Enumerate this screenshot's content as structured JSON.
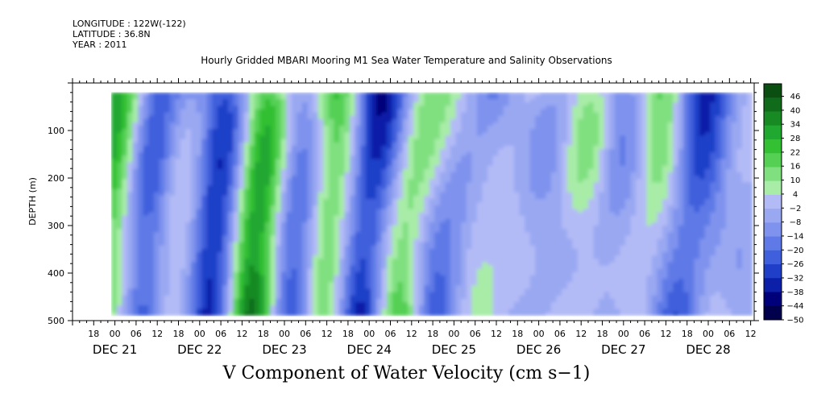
{
  "header": {
    "longitude": "LONGITUDE : 122W(-122)",
    "latitude": "LATITUDE : 36.8N",
    "year": "YEAR : 2011",
    "title": "Hourly Gridded MBARI Mooring M1 Sea Water Temperature and Salinity Observations"
  },
  "bottom_title": "V Component of Water Velocity (cm s−1)",
  "chart_data": {
    "type": "heatmap",
    "title": "Hourly Gridded MBARI Mooring M1 Sea Water Temperature and Salinity Observations",
    "xlabel": "",
    "ylabel": "DEPTH (m)",
    "variable": "V Component of Water Velocity (cm s−1)",
    "x_range_hours_from_dec21_00": [
      -12,
      181
    ],
    "data_x_range_hours_from_dec21_00": [
      -1,
      180
    ],
    "ylim": [
      500,
      0
    ],
    "data_depth_range": [
      20,
      485
    ],
    "y_ticks": [
      100,
      200,
      300,
      400,
      500
    ],
    "hour_tick_labels": [
      "18",
      "00",
      "06",
      "12",
      "18",
      "00",
      "06",
      "12",
      "18",
      "00",
      "06",
      "12",
      "18",
      "00",
      "06",
      "12",
      "18",
      "00",
      "06",
      "12",
      "18",
      "00",
      "06",
      "12",
      "18",
      "00",
      "06",
      "12",
      "18",
      "00",
      "06",
      "12"
    ],
    "date_labels": [
      "DEC 21",
      "DEC 22",
      "DEC 23",
      "DEC 24",
      "DEC 25",
      "DEC 26",
      "DEC 27",
      "DEC 28"
    ],
    "colorbar": {
      "levels": [
        -50,
        -44,
        -38,
        -32,
        -26,
        -20,
        -14,
        -8,
        -2,
        4,
        10,
        16,
        22,
        28,
        34,
        40,
        46
      ],
      "labels": [
        "46",
        "40",
        "34",
        "28",
        "22",
        "16",
        "10",
        "4",
        "−2",
        "−8",
        "−14",
        "−20",
        "−26",
        "−32",
        "−38",
        "−44",
        "−50"
      ],
      "colors": [
        "#00004d",
        "#00007a",
        "#0b1fa8",
        "#1f3fc8",
        "#3f5fdc",
        "#5f7ae6",
        "#7f93ee",
        "#9aa8f2",
        "#b3bbf6",
        "#a8eca8",
        "#80e080",
        "#55d055",
        "#33c033",
        "#20a830",
        "#188a24",
        "#106c1a",
        "#0a4e12"
      ]
    },
    "field_description": "alternating vertical bands of positive (green) and negative (blue) meridional velocity, strongest values near surface"
  },
  "colors": {
    "positive": "#33c033",
    "negative": "#8090f0",
    "background": "#ffffff"
  }
}
